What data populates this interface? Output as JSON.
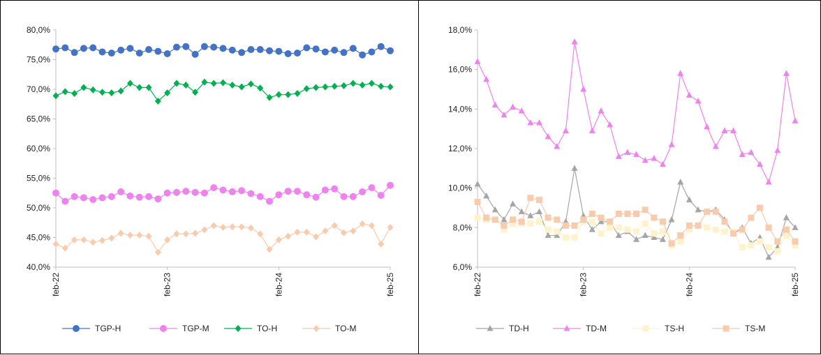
{
  "chart_data": [
    {
      "type": "line",
      "title": "",
      "x_tick_labels": [
        "feb-22",
        "feb-23",
        "feb-24",
        "feb-25"
      ],
      "x_tick_index": [
        0,
        12,
        24,
        36
      ],
      "ylim": [
        40,
        80
      ],
      "y_ticks": [
        40,
        45,
        50,
        55,
        60,
        65,
        70,
        75,
        80
      ],
      "y_tick_labels": [
        "40,0%",
        "45,0%",
        "50,0%",
        "55,0%",
        "60,0%",
        "65,0%",
        "70,0%",
        "75,0%",
        "80,0%"
      ],
      "grid": false,
      "legend_position": "bottom",
      "series": [
        {
          "name": "TGP-H",
          "color": "#4472C4",
          "marker": "circle",
          "values": [
            76.8,
            77.0,
            76.2,
            76.9,
            77.0,
            76.3,
            76.1,
            76.6,
            76.9,
            76.1,
            76.7,
            76.4,
            76.0,
            77.1,
            77.2,
            75.9,
            77.2,
            77.1,
            76.9,
            76.6,
            76.2,
            76.7,
            76.7,
            76.5,
            76.4,
            76.0,
            76.1,
            77.0,
            76.8,
            76.3,
            76.6,
            76.2,
            76.9,
            75.8,
            76.3,
            77.2,
            76.5
          ]
        },
        {
          "name": "TGP-M",
          "color": "#EE82EE",
          "marker": "circle",
          "values": [
            52.5,
            51.1,
            51.9,
            51.7,
            51.4,
            51.7,
            51.9,
            52.7,
            52.0,
            51.8,
            51.9,
            51.5,
            52.5,
            52.6,
            52.8,
            52.6,
            52.5,
            53.4,
            53.0,
            52.7,
            52.9,
            52.4,
            51.9,
            51.1,
            52.2,
            52.8,
            52.8,
            52.2,
            51.8,
            53.0,
            53.2,
            51.9,
            51.9,
            52.7,
            53.4,
            52.1,
            53.8
          ]
        },
        {
          "name": "TO-H",
          "color": "#00B050",
          "marker": "diamond",
          "values": [
            68.9,
            69.6,
            69.3,
            70.3,
            69.9,
            69.5,
            69.4,
            69.7,
            71.0,
            70.3,
            70.3,
            68.0,
            69.4,
            71.0,
            70.7,
            69.5,
            71.2,
            71.0,
            71.1,
            70.7,
            70.4,
            70.9,
            70.2,
            68.6,
            69.1,
            69.1,
            69.3,
            70.1,
            70.3,
            70.4,
            70.5,
            70.6,
            71.0,
            70.7,
            71.0,
            70.5,
            70.4
          ]
        },
        {
          "name": "TO-M",
          "color": "#F8CBAD",
          "marker": "diamond",
          "values": [
            43.9,
            43.2,
            44.6,
            44.6,
            44.2,
            44.5,
            44.9,
            45.7,
            45.4,
            45.4,
            45.2,
            42.5,
            44.6,
            45.6,
            45.6,
            45.7,
            46.3,
            47.0,
            46.7,
            46.8,
            46.8,
            46.6,
            45.6,
            43.0,
            44.6,
            45.2,
            45.9,
            45.9,
            45.1,
            46.1,
            47.0,
            45.8,
            46.1,
            47.3,
            47.0,
            43.9,
            46.7
          ]
        }
      ]
    },
    {
      "type": "line",
      "title": "",
      "x_tick_labels": [
        "feb-22",
        "feb-23",
        "feb-24",
        "feb-25"
      ],
      "x_tick_index": [
        0,
        12,
        24,
        36
      ],
      "ylim": [
        6,
        18
      ],
      "y_ticks": [
        6,
        8,
        10,
        12,
        14,
        16,
        18
      ],
      "y_tick_labels": [
        "6,0%",
        "8,0%",
        "10,0%",
        "12,0%",
        "14,0%",
        "16,0%",
        "18,0%"
      ],
      "grid": false,
      "legend_position": "bottom",
      "series": [
        {
          "name": "TD-H",
          "color": "#A5A5A5",
          "marker": "triangle",
          "values": [
            10.2,
            9.6,
            8.9,
            8.4,
            9.2,
            8.8,
            8.6,
            8.8,
            7.6,
            7.6,
            8.3,
            11.0,
            8.6,
            7.9,
            8.3,
            8.3,
            7.6,
            7.8,
            7.4,
            7.6,
            7.5,
            7.4,
            8.4,
            10.3,
            9.4,
            8.9,
            8.8,
            8.9,
            8.4,
            7.7,
            8.0,
            7.2,
            7.5,
            6.5,
            7.0,
            8.5,
            8.0
          ]
        },
        {
          "name": "TD-M",
          "color": "#EE82EE",
          "marker": "triangle",
          "values": [
            16.4,
            15.5,
            14.2,
            13.7,
            14.1,
            13.9,
            13.3,
            13.3,
            12.6,
            12.1,
            12.9,
            17.4,
            15.0,
            12.9,
            13.9,
            13.2,
            11.6,
            11.8,
            11.7,
            11.4,
            11.5,
            11.2,
            12.2,
            15.8,
            14.7,
            14.4,
            13.1,
            12.1,
            12.9,
            12.9,
            11.7,
            11.8,
            11.2,
            10.3,
            11.9,
            15.8,
            13.4
          ]
        },
        {
          "name": "TS-H",
          "color": "#FFF2CC",
          "marker": "square",
          "values": [
            8.5,
            8.4,
            8.4,
            7.9,
            8.2,
            8.2,
            8.2,
            8.3,
            7.9,
            7.8,
            7.5,
            7.5,
            8.3,
            8.3,
            7.7,
            8.0,
            8.0,
            7.9,
            7.8,
            8.2,
            7.7,
            7.8,
            7.1,
            7.3,
            7.9,
            8.1,
            8.0,
            7.9,
            7.8,
            7.8,
            7.0,
            7.1,
            7.3,
            7.0,
            6.8,
            7.6,
            7.1
          ]
        },
        {
          "name": "TS-M",
          "color": "#F8CBAD",
          "marker": "square",
          "values": [
            9.3,
            8.5,
            8.4,
            8.1,
            8.4,
            8.3,
            9.5,
            9.4,
            8.5,
            8.4,
            8.1,
            8.1,
            8.4,
            8.7,
            8.5,
            8.3,
            8.7,
            8.7,
            8.7,
            8.9,
            8.5,
            8.3,
            7.2,
            7.6,
            8.1,
            8.1,
            8.8,
            8.8,
            8.3,
            7.7,
            7.9,
            8.5,
            9.0,
            8.0,
            7.3,
            7.9,
            7.3
          ]
        }
      ]
    }
  ]
}
